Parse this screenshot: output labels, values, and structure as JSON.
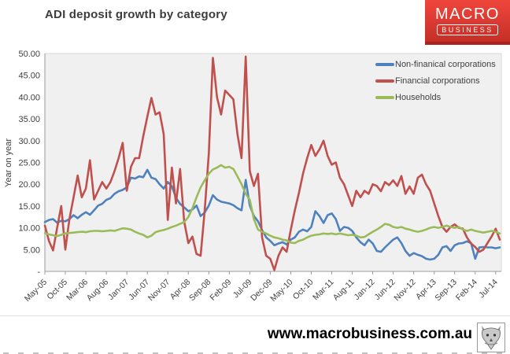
{
  "header": {
    "title": "ADI deposit growth by category",
    "logo": {
      "line1": "MACRO",
      "line2": "BUSINESS",
      "bg_color": "#d93a30"
    }
  },
  "footer": {
    "url": "www.macrobusiness.com.au",
    "icon": "wolf-logo"
  },
  "colors": {
    "blue": "#4f81bd",
    "red": "#c0504d",
    "green": "#9bbb59",
    "plot_bg": "#f0f0f1",
    "axis": "#9b9b9b",
    "border": "#d9d9d9",
    "text": "#3f3f3f"
  },
  "chart_data": {
    "type": "line",
    "title": "ADI deposit growth by category",
    "xlabel": "",
    "ylabel": "Year on year",
    "ylim": [
      0,
      50
    ],
    "grid": false,
    "legend_position": "top-right",
    "y_tick_labels": [
      "50.00",
      "45.00",
      "40.00",
      "35.00",
      "30.00",
      "25.00",
      "20.00",
      "15.00",
      "10.00",
      "5.00",
      "-"
    ],
    "x_tick_labels": [
      "May-05",
      "Oct-05",
      "Mar-06",
      "Aug-06",
      "Jan-07",
      "Jun-07",
      "Nov-07",
      "Apr-08",
      "Sep-08",
      "Feb-09",
      "Jul-09",
      "Dec-09",
      "May-10",
      "Oct-10",
      "Mar-11",
      "Aug-11",
      "Jan-12",
      "Jun-12",
      "Nov-12",
      "Apr-13",
      "Sep-13",
      "Feb-14",
      "Jul-14"
    ],
    "x_tick_step": 5,
    "x_start": "May-05",
    "x_end": "Aug-14",
    "frequency": "monthly",
    "series": [
      {
        "name": "Non-finanical corporations",
        "color": "#4f81bd",
        "values": [
          11.3,
          11.8,
          12.0,
          11.2,
          11.6,
          11.5,
          12.0,
          12.9,
          12.2,
          13.0,
          13.6,
          13.0,
          14.0,
          15.1,
          15.5,
          16.4,
          16.8,
          17.8,
          18.4,
          18.7,
          19.3,
          21.5,
          21.3,
          21.8,
          21.6,
          23.3,
          21.5,
          21.2,
          20.0,
          19.0,
          20.5,
          19.5,
          16.9,
          15.5,
          14.7,
          13.8,
          14.2,
          15.1,
          12.7,
          13.5,
          15.1,
          17.5,
          16.5,
          16.0,
          15.8,
          15.6,
          15.2,
          14.5,
          14.0,
          21.0,
          15.1,
          12.7,
          11.5,
          9.5,
          7.8,
          7.0,
          6.0,
          6.4,
          6.7,
          6.2,
          7.3,
          7.8,
          9.1,
          9.6,
          9.2,
          10.2,
          13.8,
          12.7,
          11.1,
          12.9,
          13.3,
          12.0,
          9.3,
          10.2,
          10.0,
          9.3,
          7.8,
          6.7,
          6.0,
          7.3,
          6.4,
          4.7,
          4.5,
          5.5,
          6.4,
          7.3,
          7.8,
          6.5,
          4.7,
          3.6,
          4.2,
          3.8,
          3.5,
          2.9,
          2.7,
          2.9,
          3.8,
          5.5,
          5.8,
          4.7,
          6.0,
          6.4,
          6.5,
          6.9,
          6.5,
          2.9,
          5.5,
          5.6,
          5.5,
          5.5,
          5.3,
          5.5
        ]
      },
      {
        "name": "Financial corporations",
        "color": "#c0504d",
        "values": [
          10.5,
          7.0,
          4.8,
          10.0,
          15.0,
          5.0,
          12.0,
          17.0,
          22.0,
          17.0,
          19.0,
          25.5,
          16.5,
          18.5,
          20.5,
          19.0,
          20.5,
          23.0,
          26.0,
          29.5,
          18.5,
          24.0,
          26.0,
          26.0,
          31.0,
          35.5,
          39.8,
          36.0,
          36.5,
          31.5,
          11.8,
          23.8,
          15.6,
          23.5,
          11.5,
          6.5,
          8.0,
          4.0,
          3.6,
          14.0,
          27.0,
          49.0,
          40.0,
          36.0,
          41.5,
          40.5,
          39.5,
          31.5,
          26.0,
          49.3,
          23.0,
          19.6,
          22.4,
          7.8,
          3.6,
          2.9,
          0.3,
          3.6,
          5.5,
          4.5,
          9.5,
          14.0,
          18.0,
          22.5,
          26.0,
          29.0,
          26.5,
          28.0,
          30.0,
          26.5,
          24.5,
          25.0,
          21.5,
          20.0,
          17.5,
          15.0,
          18.5,
          17.0,
          18.5,
          17.8,
          20.0,
          19.6,
          18.4,
          20.5,
          19.8,
          20.9,
          19.6,
          21.9,
          17.8,
          19.5,
          17.8,
          21.5,
          22.2,
          20.0,
          18.5,
          15.6,
          12.7,
          10.2,
          9.1,
          10.2,
          10.8,
          10.0,
          9.8,
          7.8,
          6.4,
          5.6,
          4.5,
          5.0,
          6.5,
          8.0,
          9.8,
          7.3
        ]
      },
      {
        "name": "Households",
        "color": "#9bbb59",
        "values": [
          8.8,
          8.5,
          8.3,
          8.1,
          8.4,
          8.7,
          8.8,
          8.9,
          9.0,
          9.1,
          9.0,
          9.2,
          9.3,
          9.3,
          9.2,
          9.3,
          9.4,
          9.3,
          9.6,
          9.9,
          9.8,
          9.6,
          9.1,
          8.7,
          8.4,
          7.8,
          8.2,
          9.0,
          9.3,
          9.5,
          9.8,
          10.2,
          10.5,
          10.9,
          11.3,
          12.5,
          14.5,
          17.0,
          19.3,
          20.9,
          22.4,
          23.4,
          23.8,
          24.4,
          23.8,
          24.0,
          23.5,
          21.8,
          20.0,
          17.8,
          16.4,
          12.0,
          9.6,
          9.1,
          8.7,
          8.2,
          7.8,
          7.6,
          7.3,
          7.1,
          6.6,
          6.5,
          7.0,
          7.3,
          7.8,
          8.2,
          8.4,
          8.5,
          8.7,
          8.6,
          8.7,
          8.5,
          8.7,
          8.5,
          8.3,
          8.4,
          8.2,
          7.8,
          7.9,
          8.5,
          9.1,
          9.6,
          10.2,
          10.9,
          10.7,
          10.2,
          10.0,
          10.2,
          9.8,
          9.6,
          9.3,
          9.1,
          9.3,
          9.6,
          10.0,
          10.2,
          10.0,
          10.2,
          10.5,
          10.2,
          10.0,
          10.2,
          9.6,
          9.3,
          9.6,
          9.3,
          9.1,
          8.9,
          9.1,
          9.3,
          9.1,
          8.7
        ]
      }
    ]
  }
}
